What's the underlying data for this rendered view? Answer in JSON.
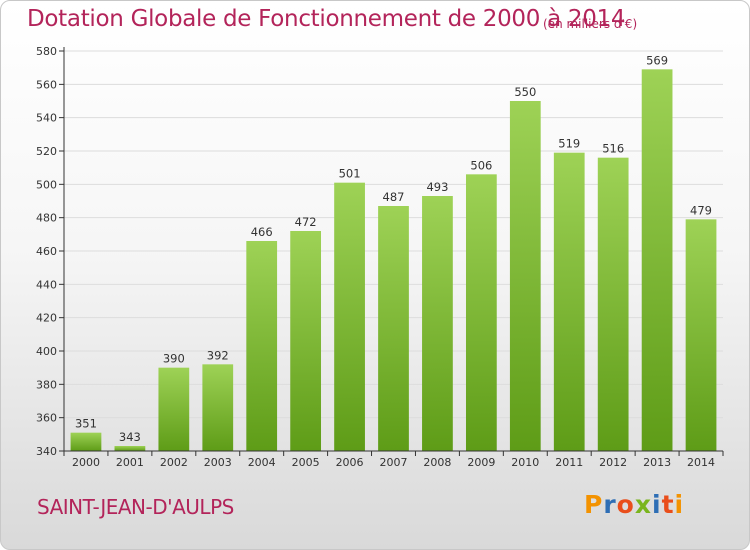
{
  "header": {
    "title": "Dotation Globale de Fonctionnement de 2000 à 2014",
    "unit": "(en milliers d'€)"
  },
  "footer": {
    "commune": "SAINT-JEAN-D'AULPS",
    "logo_text": "Proxiti"
  },
  "colors": {
    "title": "#b3245a",
    "bar_top": "#9ed256",
    "bar_bottom": "#5e9c17",
    "grid": "#dddddd",
    "logo_letters": [
      "#f39200",
      "#2e6eb5",
      "#e94e1b",
      "#7ab51d",
      "#2e6eb5",
      "#e94e1b",
      "#f39200"
    ]
  },
  "chart_data": {
    "type": "bar",
    "title": "Dotation Globale de Fonctionnement de 2000 à 2014",
    "subtitle": "(en milliers d'€)",
    "xlabel": "",
    "ylabel": "",
    "categories": [
      "2000",
      "2001",
      "2002",
      "2003",
      "2004",
      "2005",
      "2006",
      "2007",
      "2008",
      "2009",
      "2010",
      "2011",
      "2012",
      "2013",
      "2014"
    ],
    "values": [
      351,
      343,
      390,
      392,
      466,
      472,
      501,
      487,
      493,
      506,
      550,
      519,
      516,
      569,
      479
    ],
    "ylim": [
      340,
      580
    ],
    "yticks": [
      340,
      360,
      380,
      400,
      420,
      440,
      460,
      480,
      500,
      520,
      540,
      560,
      580
    ],
    "grid": true,
    "legend": "none"
  }
}
